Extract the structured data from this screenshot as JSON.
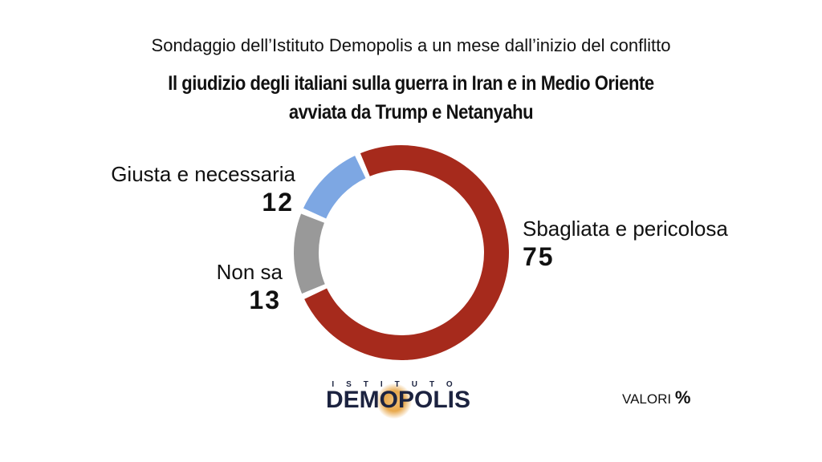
{
  "subtitle": "Sondaggio dell’Istituto Demopolis a un mese dall’inizio del conflitto",
  "title_line1": "Il giudizio degli italiani sulla guerra in Iran e in Medio Oriente",
  "title_line2": "avviata da Trump e Netanyahu",
  "chart_data": {
    "type": "pie",
    "donut": true,
    "slices": [
      {
        "label": "Sbagliata e pericolosa",
        "value": 75,
        "color": "#a62a1c"
      },
      {
        "label": "Non sa",
        "value": 13,
        "color": "#999999"
      },
      {
        "label": "Giusta e necessaria",
        "value": 12,
        "color": "#7da7e3"
      }
    ]
  },
  "logo": {
    "top": "ISTITUTO",
    "main": "DEMOPOLIS"
  },
  "footer": {
    "valori": "VALORI",
    "unit": "%"
  }
}
